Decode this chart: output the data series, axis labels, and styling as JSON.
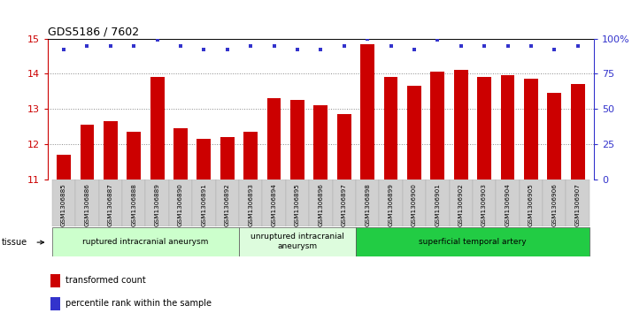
{
  "title": "GDS5186 / 7602",
  "categories": [
    "GSM1306885",
    "GSM1306886",
    "GSM1306887",
    "GSM1306888",
    "GSM1306889",
    "GSM1306890",
    "GSM1306891",
    "GSM1306892",
    "GSM1306893",
    "GSM1306894",
    "GSM1306895",
    "GSM1306896",
    "GSM1306897",
    "GSM1306898",
    "GSM1306899",
    "GSM1306900",
    "GSM1306901",
    "GSM1306902",
    "GSM1306903",
    "GSM1306904",
    "GSM1306905",
    "GSM1306906",
    "GSM1306907"
  ],
  "bar_values": [
    11.7,
    12.55,
    12.65,
    12.35,
    13.9,
    12.45,
    12.15,
    12.2,
    12.35,
    13.3,
    13.25,
    13.1,
    12.85,
    14.85,
    13.9,
    13.65,
    14.05,
    14.1,
    13.9,
    13.95,
    13.85,
    13.45,
    13.7
  ],
  "dot_values": [
    92,
    95,
    95,
    95,
    99,
    95,
    92,
    92,
    95,
    95,
    92,
    92,
    95,
    100,
    95,
    92,
    99,
    95,
    95,
    95,
    95,
    92,
    95
  ],
  "ylim_left": [
    11,
    15
  ],
  "ylim_right": [
    0,
    100
  ],
  "yticks_left": [
    11,
    12,
    13,
    14,
    15
  ],
  "yticks_right": [
    0,
    25,
    50,
    75,
    100
  ],
  "bar_color": "#cc0000",
  "dot_color": "#3333cc",
  "grid_color": "#888888",
  "xticklabel_bg": "#d8d8d8",
  "tissue_groups": [
    {
      "label": "ruptured intracranial aneurysm",
      "start": 0,
      "end": 8,
      "color": "#ccffcc"
    },
    {
      "label": "unruptured intracranial\naneurysm",
      "start": 8,
      "end": 13,
      "color": "#ddfcdd"
    },
    {
      "label": "superficial temporal artery",
      "start": 13,
      "end": 23,
      "color": "#22cc44"
    }
  ],
  "legend_items": [
    {
      "label": "transformed count",
      "color": "#cc0000"
    },
    {
      "label": "percentile rank within the sample",
      "color": "#3333cc"
    }
  ],
  "tissue_label": "tissue"
}
